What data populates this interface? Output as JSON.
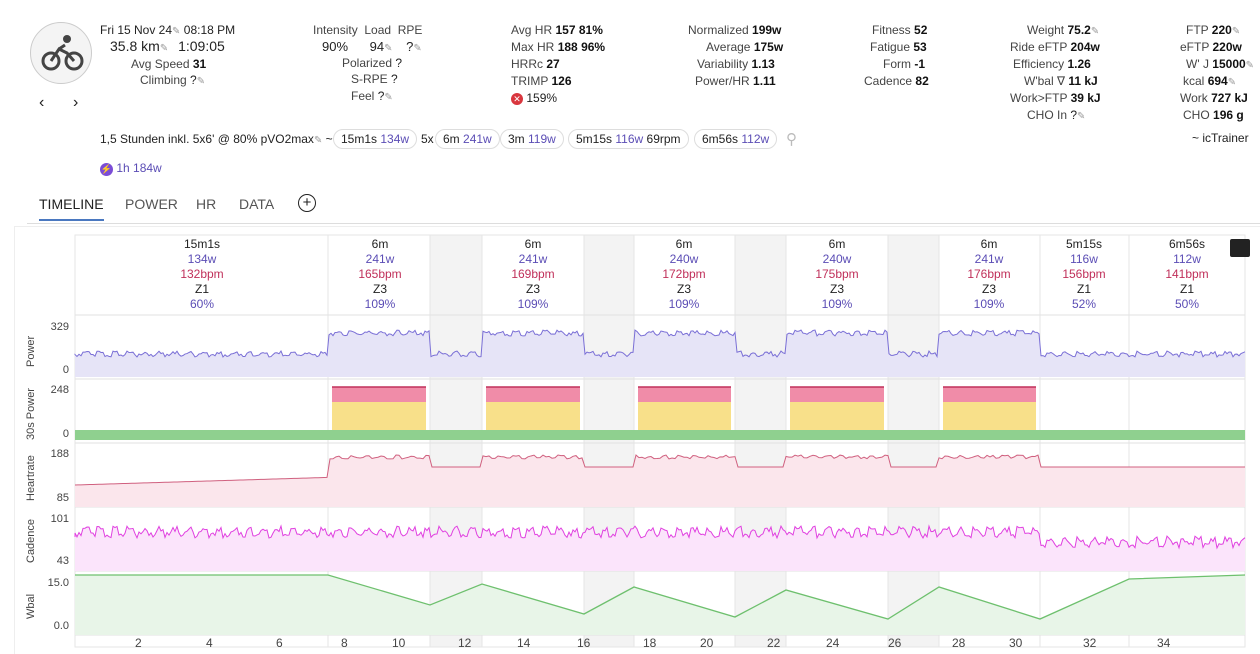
{
  "header": {
    "date": "Fri 15 Nov 24",
    "time": "08:18 PM",
    "distance": "35.8 km",
    "duration": "1:09:05",
    "avg_speed_label": "Avg Speed",
    "avg_speed": "31",
    "climbing_label": "Climbing",
    "climbing": "?"
  },
  "stats": {
    "col1": [
      {
        "label": "Intensity",
        "value": "90%"
      },
      {
        "label": "Load",
        "value": "94"
      },
      {
        "label": "RPE",
        "value": "?"
      }
    ],
    "col1b": [
      {
        "label": "Polarized",
        "value": "?"
      },
      {
        "label": "S-RPE",
        "value": "?"
      },
      {
        "label": "Feel",
        "value": "?"
      }
    ],
    "col2": [
      {
        "label": "Avg HR",
        "value": "157",
        "extra": "81%"
      },
      {
        "label": "Max HR",
        "value": "188",
        "extra": "96%"
      },
      {
        "label": "HRRc",
        "value": "27",
        "extra": ""
      },
      {
        "label": "TRIMP",
        "value": "126",
        "extra": ""
      }
    ],
    "col2_warn": "159%",
    "col3": [
      {
        "label": "Normalized",
        "value": "199w"
      },
      {
        "label": "Average",
        "value": "175w"
      },
      {
        "label": "Variability",
        "value": "1.13"
      },
      {
        "label": "Power/HR",
        "value": "1.11"
      }
    ],
    "col4": [
      {
        "label": "Fitness",
        "value": "52"
      },
      {
        "label": "Fatigue",
        "value": "53"
      },
      {
        "label": "Form",
        "value": "-1"
      },
      {
        "label": "Cadence",
        "value": "82"
      }
    ],
    "col5": [
      {
        "label": "Weight",
        "value": "75.2"
      },
      {
        "label": "Ride eFTP",
        "value": "204w"
      },
      {
        "label": "Efficiency",
        "value": "1.26"
      },
      {
        "label": "W'bal ∇",
        "value": "11 kJ"
      },
      {
        "label": "Work>FTP",
        "value": "39 kJ"
      },
      {
        "label": "CHO In",
        "value": "?"
      }
    ],
    "col6": [
      {
        "label": "FTP",
        "value": "220"
      },
      {
        "label": "eFTP",
        "value": "220w"
      },
      {
        "label": "W' J",
        "value": "15000"
      },
      {
        "label": "kcal",
        "value": "694"
      },
      {
        "label": "Work",
        "value": "727 kJ"
      },
      {
        "label": "CHO",
        "value": "196 g"
      }
    ]
  },
  "description": {
    "text": "1,5 Stunden inkl. 5x6' @ 80% pVO2max",
    "tilde": "~",
    "chips": [
      {
        "dur": "15m1s",
        "w": "134w",
        "extra": ""
      },
      {
        "dur": "5x",
        "dur2": "6m",
        "w": "241w",
        "extra": ""
      },
      {
        "dur": "3m",
        "w": "119w",
        "extra": ""
      },
      {
        "dur": "5m15s",
        "w": "116w",
        "extra": "69rpm"
      },
      {
        "dur": "6m56s",
        "w": "112w",
        "extra": ""
      }
    ],
    "source": "~ icTrainer",
    "badge_text": "1h 184w"
  },
  "tabs": [
    "TIMELINE",
    "POWER",
    "HR",
    "DATA"
  ],
  "intervals": [
    {
      "dur": "15m1s",
      "w": "134w",
      "bpm": "132bpm",
      "zone": "Z1",
      "pct": "60%"
    },
    {
      "dur": "6m",
      "w": "241w",
      "bpm": "165bpm",
      "zone": "Z3",
      "pct": "109%"
    },
    {
      "dur": "6m",
      "w": "241w",
      "bpm": "169bpm",
      "zone": "Z3",
      "pct": "109%"
    },
    {
      "dur": "6m",
      "w": "240w",
      "bpm": "172bpm",
      "zone": "Z3",
      "pct": "109%"
    },
    {
      "dur": "6m",
      "w": "240w",
      "bpm": "175bpm",
      "zone": "Z3",
      "pct": "109%"
    },
    {
      "dur": "6m",
      "w": "241w",
      "bpm": "176bpm",
      "zone": "Z3",
      "pct": "109%"
    },
    {
      "dur": "5m15s",
      "w": "116w",
      "bpm": "156bpm",
      "zone": "Z1",
      "pct": "52%"
    },
    {
      "dur": "6m56s",
      "w": "112w",
      "bpm": "141bpm",
      "zone": "Z1",
      "pct": "50%"
    }
  ],
  "lanes": [
    {
      "name": "Power",
      "max": "329",
      "min": "0"
    },
    {
      "name": "30s Power",
      "max": "248",
      "min": "0"
    },
    {
      "name": "Heartrate",
      "max": "188",
      "min": "85"
    },
    {
      "name": "Cadence",
      "max": "101",
      "min": "43"
    },
    {
      "name": "Wbal",
      "max": "15.0",
      "min": "0.0"
    }
  ],
  "xticks": [
    "2",
    "4",
    "6",
    "8",
    "10",
    "12",
    "14",
    "16",
    "18",
    "20",
    "22",
    "24",
    "26",
    "28",
    "30",
    "32",
    "34"
  ],
  "colors": {
    "power": "#7a6fd6",
    "heartrate": "#d0607f",
    "cadence": "#e040e0",
    "wbal": "#6ec06e",
    "zone_red": "#f08ca8",
    "zone_yellow": "#f8e08a",
    "zone_green": "#8fd08f",
    "accent": "#4a78c0"
  }
}
